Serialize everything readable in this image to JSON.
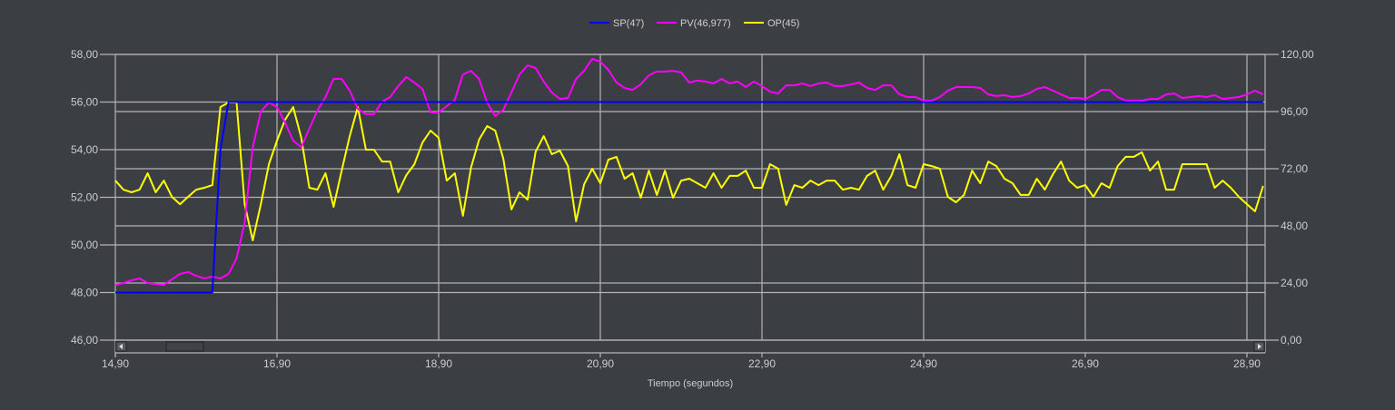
{
  "chart_data": {
    "type": "line",
    "legend_placement": "top-center",
    "xlabel": "Tiempo (segundos)",
    "xlim": [
      14.9,
      29.125
    ],
    "x_ticks": [
      "14,90",
      "16,90",
      "18,90",
      "20,90",
      "22,90",
      "24,90",
      "26,90",
      "28,90"
    ],
    "x_tick_values": [
      14.9,
      16.9,
      18.9,
      20.9,
      22.9,
      24.9,
      26.9,
      28.9
    ],
    "y_left": {
      "lim": [
        46,
        58
      ],
      "ticks": [
        "46,00",
        "48,00",
        "50,00",
        "52,00",
        "54,00",
        "56,00",
        "58,00"
      ],
      "tick_values": [
        46,
        48,
        50,
        52,
        54,
        56,
        58
      ]
    },
    "y_right": {
      "lim": [
        0,
        120
      ],
      "ticks": [
        "0,00",
        "24,00",
        "48,00",
        "72,00",
        "96,00",
        "120,00"
      ],
      "tick_values": [
        0,
        24,
        48,
        72,
        96,
        120
      ]
    },
    "grid": true,
    "x_start": 14.9,
    "x_step": 0.1,
    "series": [
      {
        "name": "SP(47)",
        "color": "#0000ff",
        "axis": "left",
        "x": [
          14.9,
          16.1,
          16.2,
          16.3,
          29.1
        ],
        "values": [
          48,
          48,
          54,
          56,
          56
        ]
      },
      {
        "name": "PV(46,977)",
        "color": "#ff00ff",
        "axis": "left",
        "values": [
          48.32,
          48.4,
          48.51,
          48.59,
          48.4,
          48.36,
          48.32,
          48.55,
          48.78,
          48.86,
          48.7,
          48.59,
          48.67,
          48.59,
          48.78,
          49.43,
          50.95,
          54.1,
          55.6,
          55.98,
          55.79,
          55.14,
          54.38,
          54.1,
          54.88,
          55.64,
          56.21,
          56.97,
          56.97,
          56.48,
          55.71,
          55.49,
          55.49,
          56.02,
          56.21,
          56.67,
          57.05,
          56.82,
          56.55,
          55.56,
          55.56,
          55.83,
          56.1,
          57.16,
          57.31,
          56.97,
          55.98,
          55.41,
          55.68,
          56.4,
          57.16,
          57.54,
          57.43,
          56.86,
          56.4,
          56.13,
          56.17,
          56.97,
          57.31,
          57.81,
          57.7,
          57.35,
          56.82,
          56.59,
          56.51,
          56.74,
          57.12,
          57.28,
          57.28,
          57.31,
          57.24,
          56.82,
          56.9,
          56.86,
          56.78,
          56.97,
          56.78,
          56.86,
          56.63,
          56.86,
          56.67,
          56.44,
          56.36,
          56.7,
          56.7,
          56.78,
          56.67,
          56.78,
          56.82,
          56.67,
          56.67,
          56.74,
          56.82,
          56.59,
          56.51,
          56.7,
          56.7,
          56.32,
          56.21,
          56.21,
          56.06,
          56.06,
          56.21,
          56.48,
          56.63,
          56.63,
          56.63,
          56.59,
          56.32,
          56.25,
          56.29,
          56.21,
          56.25,
          56.36,
          56.55,
          56.63,
          56.48,
          56.32,
          56.17,
          56.17,
          56.13,
          56.29,
          56.51,
          56.51,
          56.21,
          56.06,
          56.06,
          56.06,
          56.13,
          56.13,
          56.32,
          56.36,
          56.17,
          56.21,
          56.25,
          56.21,
          56.29,
          56.13,
          56.17,
          56.21,
          56.32,
          56.48,
          56.32
        ]
      },
      {
        "name": "OP(45)",
        "color": "#ffff00",
        "axis": "right",
        "values": [
          67.0,
          63.2,
          62.1,
          63.2,
          70.1,
          62.1,
          67.0,
          60.2,
          57.1,
          60.2,
          63.2,
          64.0,
          65.1,
          97.9,
          99.8,
          99.8,
          57.1,
          41.9,
          57.1,
          73.9,
          83.8,
          92.6,
          97.9,
          85.0,
          64.0,
          63.2,
          70.1,
          56.0,
          71.2,
          85.7,
          97.9,
          80.0,
          80.0,
          75.0,
          75.0,
          62.1,
          69.3,
          73.9,
          83.0,
          88.0,
          85.0,
          67.0,
          70.1,
          52.2,
          72.4,
          84.2,
          89.9,
          88.0,
          76.2,
          54.9,
          62.1,
          59.0,
          79.2,
          85.7,
          78.1,
          79.6,
          73.1,
          49.9,
          65.5,
          72.0,
          65.9,
          75.8,
          77.0,
          67.8,
          70.1,
          59.8,
          71.2,
          61.0,
          71.2,
          59.8,
          67.0,
          67.8,
          65.9,
          64.0,
          70.1,
          64.0,
          69.0,
          69.0,
          71.2,
          64.0,
          64.0,
          73.9,
          72.0,
          56.8,
          65.1,
          64.0,
          67.0,
          65.1,
          67.0,
          67.0,
          63.2,
          64.0,
          63.2,
          69.0,
          71.2,
          63.2,
          69.0,
          78.1,
          65.1,
          64.0,
          73.9,
          73.1,
          72.0,
          60.2,
          57.9,
          61.0,
          71.2,
          65.9,
          75.0,
          73.1,
          67.8,
          65.9,
          61.0,
          61.0,
          67.8,
          63.2,
          69.7,
          75.0,
          67.0,
          64.0,
          65.1,
          60.2,
          65.9,
          64.0,
          73.1,
          77.0,
          77.0,
          78.9,
          71.2,
          75.0,
          63.2,
          63.2,
          73.9,
          73.9,
          73.9,
          73.9,
          64.0,
          67.0,
          64.0,
          60.2,
          57.1,
          54.1,
          64.8
        ]
      }
    ]
  },
  "colors": {
    "background": "#3b3e42",
    "grid": "#b4b4b4",
    "text": "#c9ced4"
  },
  "scrollbar": {
    "left_icon": "arrow-left-icon",
    "right_icon": "arrow-right-icon"
  }
}
